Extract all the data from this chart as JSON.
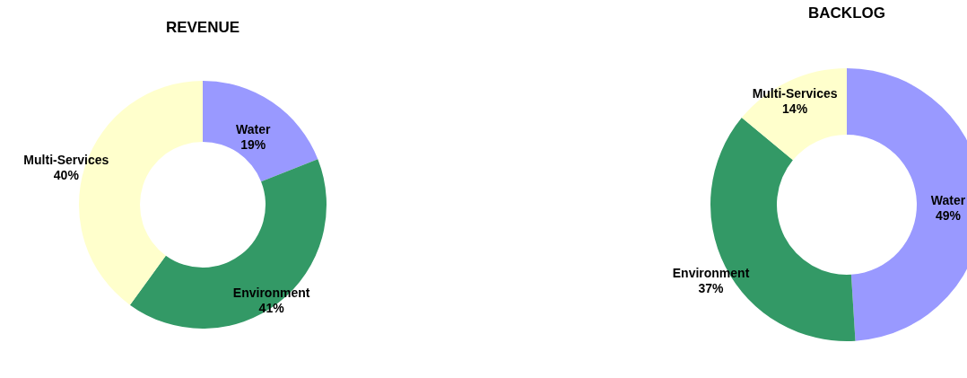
{
  "chart_data": [
    {
      "type": "donut",
      "title": "REVENUE",
      "categories": [
        "Water",
        "Environment",
        "Multi-Services"
      ],
      "values": [
        19,
        41,
        40
      ],
      "value_labels": [
        "19%",
        "41%",
        "40%"
      ],
      "colors": [
        "#9999ff",
        "#339966",
        "#ffffcc"
      ],
      "legend": false
    },
    {
      "type": "donut",
      "title": "BACKLOG",
      "categories": [
        "Water",
        "Environment",
        "Multi-Services"
      ],
      "values": [
        49,
        37,
        14
      ],
      "value_labels": [
        "49%",
        "37%",
        "14%"
      ],
      "colors": [
        "#9999ff",
        "#339966",
        "#ffffcc"
      ],
      "legend": false
    }
  ]
}
